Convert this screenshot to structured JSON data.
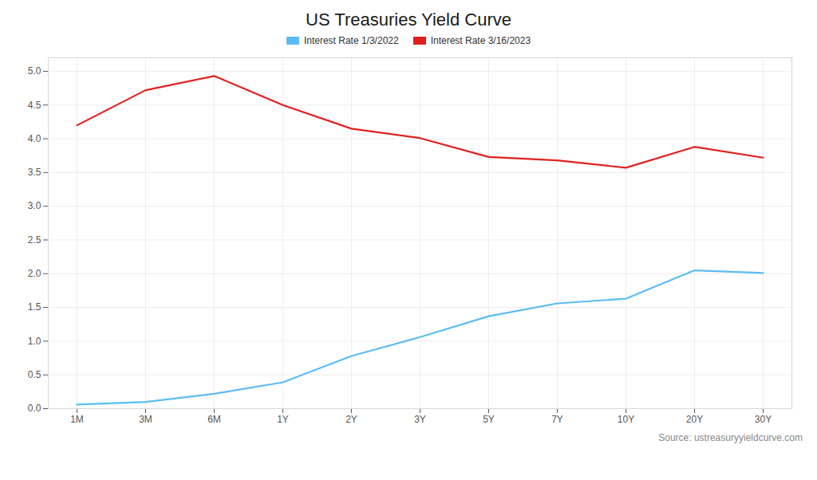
{
  "chart_data": {
    "type": "line",
    "title": "US Treasuries Yield Curve",
    "categories": [
      "1M",
      "3M",
      "6M",
      "1Y",
      "2Y",
      "3Y",
      "5Y",
      "7Y",
      "10Y",
      "20Y",
      "30Y"
    ],
    "series": [
      {
        "name": "Interest Rate 1/3/2022",
        "color": "#5bbcf5",
        "values": [
          0.06,
          0.1,
          0.22,
          0.39,
          0.78,
          1.06,
          1.37,
          1.56,
          1.63,
          2.05,
          2.01
        ]
      },
      {
        "name": "Interest Rate 3/16/2023",
        "color": "#e02020",
        "values": [
          4.2,
          4.72,
          4.93,
          4.5,
          4.15,
          4.01,
          3.73,
          3.68,
          3.57,
          3.88,
          3.72
        ]
      }
    ],
    "ylim": [
      0,
      5.2
    ],
    "yticks": [
      {
        "value": 0,
        "label": "0.0"
      },
      0.5,
      {
        "value": 1,
        "label": "1.0"
      },
      1.5,
      {
        "value": 2,
        "label": "2.0"
      },
      2.5,
      {
        "value": 3,
        "label": "3.0"
      },
      3.5,
      {
        "value": 4,
        "label": "4.0"
      },
      4.5,
      {
        "value": 5,
        "label": "5.0"
      }
    ],
    "grid": true,
    "legend": "top",
    "annotations": [
      "Source: ustreasuryyieldcurve.com"
    ]
  }
}
